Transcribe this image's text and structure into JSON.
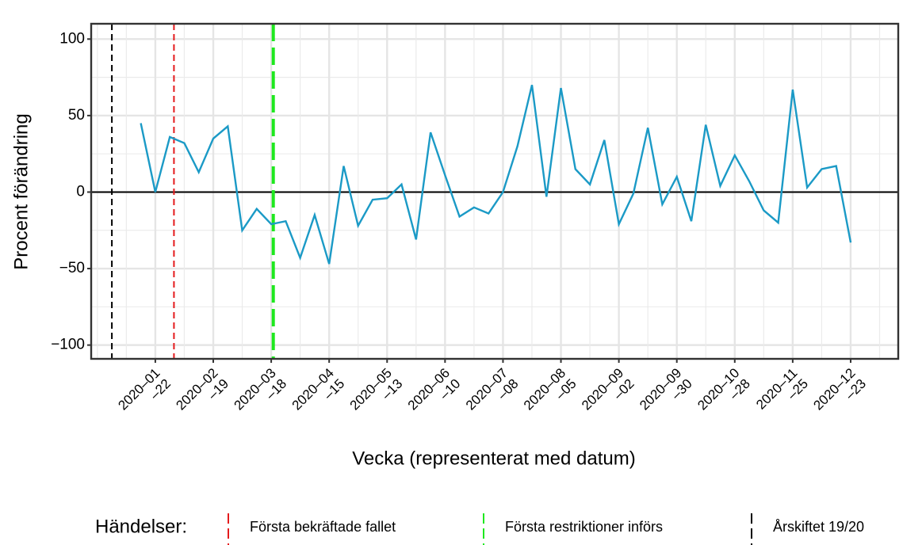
{
  "chart_data": {
    "type": "line",
    "y_label": "Procent förändring",
    "x_label": "Vecka (representerat med datum)",
    "xlim": [
      "2019-12-22",
      "2021-01-15"
    ],
    "ylim": [
      -109,
      110
    ],
    "xticks": [
      {
        "value": "2020-01-22",
        "label": "2020–01–22"
      },
      {
        "value": "2020-02-19",
        "label": "2020–02–19"
      },
      {
        "value": "2020-03-18",
        "label": "2020–03–18"
      },
      {
        "value": "2020-04-15",
        "label": "2020–04–15"
      },
      {
        "value": "2020-05-13",
        "label": "2020–05–13"
      },
      {
        "value": "2020-06-10",
        "label": "2020–06–10"
      },
      {
        "value": "2020-07-08",
        "label": "2020–07–08"
      },
      {
        "value": "2020-08-05",
        "label": "2020–08–05"
      },
      {
        "value": "2020-09-02",
        "label": "2020–09–02"
      },
      {
        "value": "2020-09-30",
        "label": "2020–09–30"
      },
      {
        "value": "2020-10-28",
        "label": "2020–10–28"
      },
      {
        "value": "2020-11-25",
        "label": "2020–11–25"
      },
      {
        "value": "2020-12-23",
        "label": "2020–12–23"
      }
    ],
    "yticks": [
      {
        "value": -100,
        "label": "−100"
      },
      {
        "value": -50,
        "label": "−50"
      },
      0,
      50,
      100
    ],
    "grid": true,
    "x": [
      "2020-01-15",
      "2020-01-22",
      "2020-01-29",
      "2020-02-05",
      "2020-02-12",
      "2020-02-19",
      "2020-02-26",
      "2020-03-04",
      "2020-03-11",
      "2020-03-18",
      "2020-03-25",
      "2020-04-01",
      "2020-04-08",
      "2020-04-15",
      "2020-04-22",
      "2020-04-29",
      "2020-05-06",
      "2020-05-13",
      "2020-05-20",
      "2020-05-27",
      "2020-06-03",
      "2020-06-10",
      "2020-06-17",
      "2020-06-24",
      "2020-07-01",
      "2020-07-08",
      "2020-07-15",
      "2020-07-22",
      "2020-07-29",
      "2020-08-05",
      "2020-08-12",
      "2020-08-19",
      "2020-08-26",
      "2020-09-02",
      "2020-09-09",
      "2020-09-16",
      "2020-09-23",
      "2020-09-30",
      "2020-10-07",
      "2020-10-14",
      "2020-10-21",
      "2020-10-28",
      "2020-11-04",
      "2020-11-11",
      "2020-11-18",
      "2020-11-25",
      "2020-12-02",
      "2020-12-09",
      "2020-12-16",
      "2020-12-23"
    ],
    "series": [
      {
        "color": "#1b9ac6",
        "values": [
          45,
          0,
          36,
          32,
          13,
          35,
          43,
          -25,
          -11,
          -21,
          -19,
          -43,
          -15,
          -47,
          17,
          -22,
          -5,
          -4,
          5,
          -31,
          39,
          11,
          -16,
          -10,
          -14,
          0,
          30,
          70,
          -3,
          68,
          15,
          5,
          34,
          -21,
          -1,
          42,
          -8,
          10,
          -19,
          44,
          4,
          24,
          7,
          -12,
          -20,
          67,
          3,
          15,
          17,
          -33
        ]
      }
    ],
    "hline": 0,
    "legend_title": "Händelser:",
    "events": [
      {
        "name": "Första bekräftade fallet",
        "color": "#e41a1c",
        "x": "2020-01-31"
      },
      {
        "name": "Första restriktioner införs",
        "color": "#1ee81e",
        "x": "2020-03-19"
      },
      {
        "name": "Årskiftet 19/20",
        "color": "#000000",
        "x": "2020-01-01"
      }
    ]
  }
}
